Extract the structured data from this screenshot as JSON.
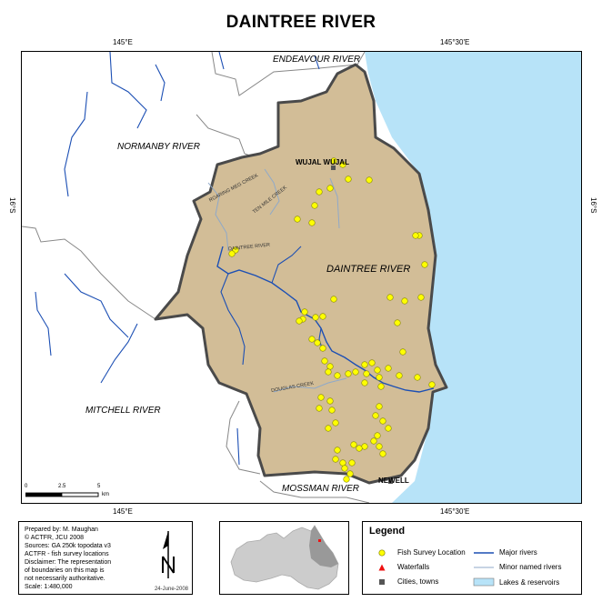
{
  "title": "DAINTREE RIVER",
  "coords": {
    "top_left": "145°E",
    "top_right": "145°30'E",
    "bottom_left": "145°E",
    "bottom_right": "145°30'E",
    "left_lat": "16°S",
    "right_lat": "16°S"
  },
  "labels": {
    "endeavour": "ENDEAVOUR RIVER",
    "normanby": "NORMANBY RIVER",
    "daintree": "DAINTREE RIVER",
    "mitchell": "MITCHELL RIVER",
    "mossman": "MOSSMAN RIVER",
    "wujal": "WUJAL WUJAL",
    "newell": "NEWELL",
    "creek_left": "ROARING MEG CREEK",
    "creek_ten_mile": "TEN MILE CREEK",
    "creek_daintree": "DAINTREE RIVER",
    "creek_douglas": "DOUGLAS CREEK"
  },
  "scale": {
    "ticks": [
      "0",
      "2.5",
      "5"
    ],
    "unit": "km"
  },
  "info": {
    "lines": [
      "Prepared by: M. Maughan",
      "© ACTFR, JCU 2008",
      "Sources: GA 250k topodata v3",
      "ACTFR - fish survey locations",
      "Disclaimer: The representation",
      "of boundaries on this map is",
      "not necessarily authoritative.",
      "Scale: 1:480,000"
    ],
    "date": "24-June-2008"
  },
  "legend": {
    "title": "Legend",
    "items": [
      {
        "label": "Fish Survey Location",
        "symbol": "yellow-dot"
      },
      {
        "label": "Waterfalls",
        "symbol": "red-triangle"
      },
      {
        "label": "Cities, towns",
        "symbol": "gray-square"
      },
      {
        "label": "Major rivers",
        "symbol": "blue-line"
      },
      {
        "label": "Minor named rivers",
        "symbol": "light-blue-line"
      },
      {
        "label": "Lakes & reservoirs",
        "symbol": "light-blue-fill"
      }
    ]
  },
  "colors": {
    "catchment": "#d2bd97",
    "sea": "#b7e3f8",
    "major_river": "#1c4fb4",
    "minor_river": "#8fa9c9",
    "survey_dot": "#ffff00",
    "town": "#555555",
    "waterfall": "#ee1111"
  },
  "icons": {
    "north_arrow": "north-arrow-icon"
  }
}
